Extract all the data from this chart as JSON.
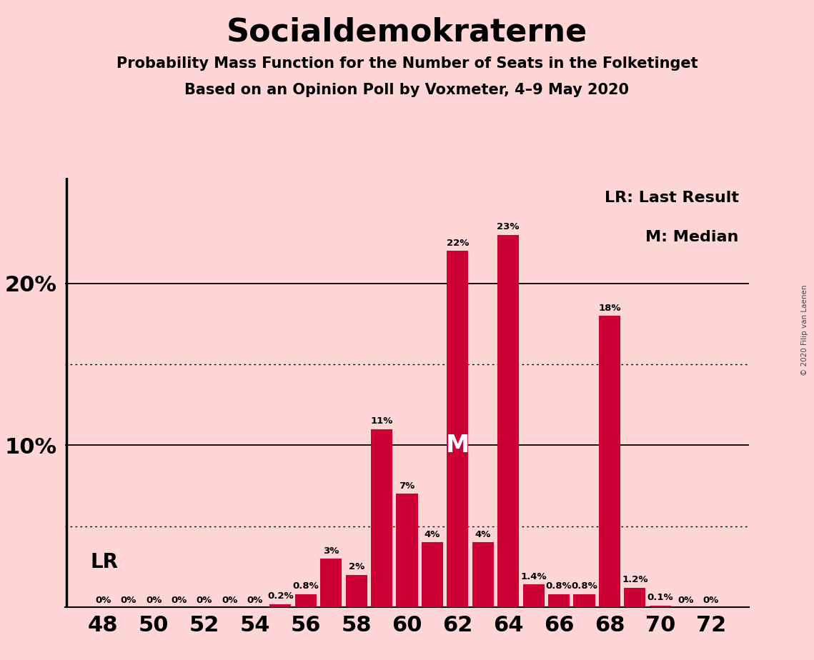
{
  "title": "Socialdemokraterne",
  "subtitle1": "Probability Mass Function for the Number of Seats in the Folketinget",
  "subtitle2": "Based on an Opinion Poll by Voxmeter, 4–9 May 2020",
  "copyright": "© 2020 Filip van Laenen",
  "seats": [
    48,
    49,
    50,
    51,
    52,
    53,
    54,
    55,
    56,
    57,
    58,
    59,
    60,
    61,
    62,
    63,
    64,
    65,
    66,
    67,
    68,
    69,
    70,
    71,
    72
  ],
  "probabilities": [
    0.0,
    0.0,
    0.0,
    0.0,
    0.0,
    0.0,
    0.0,
    0.2,
    0.8,
    3.0,
    2.0,
    11.0,
    7.0,
    4.0,
    22.0,
    4.0,
    23.0,
    1.4,
    0.8,
    0.8,
    18.0,
    1.2,
    0.1,
    0.0,
    0.0
  ],
  "bar_color": "#CC0033",
  "background_color": "#FFD6D6",
  "last_result_seat": 48,
  "median_seat": 62,
  "xlabel_seats": [
    48,
    50,
    52,
    54,
    56,
    58,
    60,
    62,
    64,
    66,
    68,
    70,
    72
  ],
  "legend_lr": "LR: Last Result",
  "legend_m": "M: Median"
}
